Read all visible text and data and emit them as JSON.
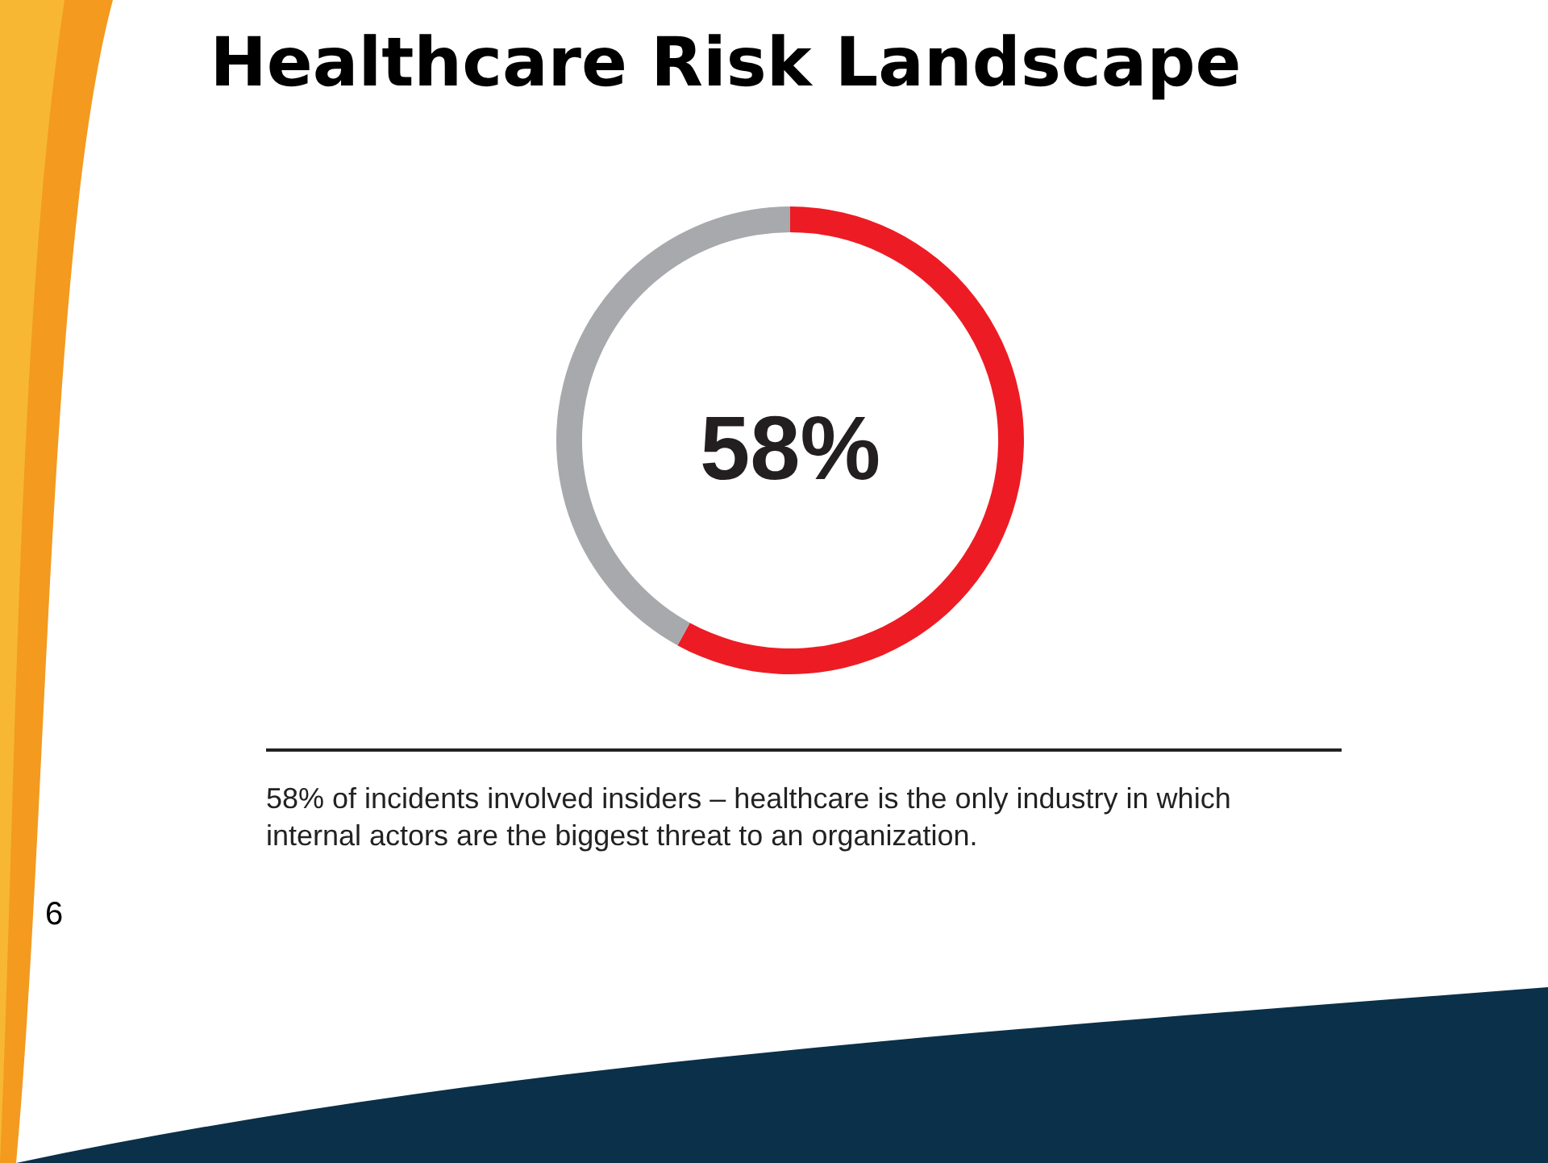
{
  "chart_data": {
    "type": "donut",
    "title": "Healthcare Risk Landscape",
    "categories": [
      null,
      null
    ],
    "values": [
      58,
      42
    ],
    "colors": [
      "#ed1c24",
      "#a7a9ac"
    ],
    "annotations": [
      "58%",
      "58% of incidents involved insiders – healthcare is the only industry in which internal actors are the biggest threat to an organization.",
      "6"
    ]
  }
}
